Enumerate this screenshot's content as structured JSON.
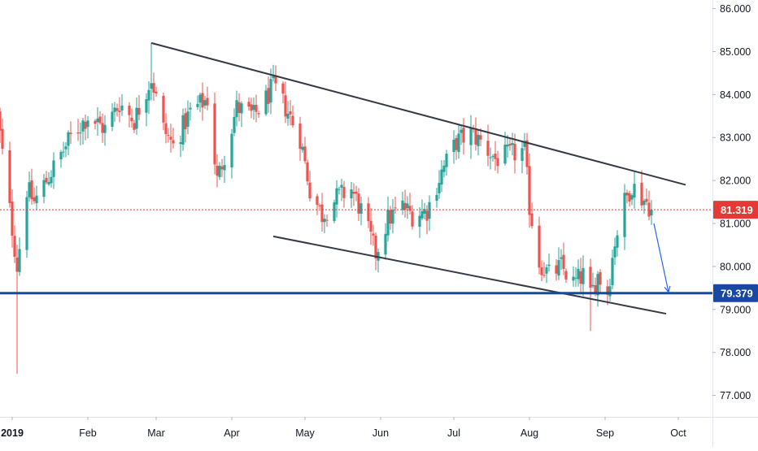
{
  "chart_data": {
    "type": "candlestick",
    "title": "",
    "xlabel": "",
    "ylabel": "",
    "ylim": [
      76.5,
      86.2
    ],
    "grid": false,
    "x_tick_labels": [
      "2019",
      "Feb",
      "Mar",
      "Apr",
      "May",
      "Jun",
      "Jul",
      "Aug",
      "Sep",
      "Oct"
    ],
    "x_tick_dates": [
      "2019-01-01",
      "2019-02-01",
      "2019-03-01",
      "2019-04-01",
      "2019-05-01",
      "2019-06-01",
      "2019-07-01",
      "2019-08-01",
      "2019-09-01",
      "2019-10-01"
    ],
    "x_range": [
      "2018-12-27",
      "2019-10-15"
    ],
    "y_ticks": [
      {
        "value": 77,
        "label": "77.000"
      },
      {
        "value": 78,
        "label": "78.000"
      },
      {
        "value": 79,
        "label": "79.000"
      },
      {
        "value": 80,
        "label": "80.000"
      },
      {
        "value": 81,
        "label": "81.000"
      },
      {
        "value": 82,
        "label": "82.000"
      },
      {
        "value": 83,
        "label": "83.000"
      },
      {
        "value": 84,
        "label": "84.000"
      },
      {
        "value": 85,
        "label": "85.000"
      },
      {
        "value": 86,
        "label": "86.000"
      }
    ],
    "price_anchors": [
      [
        "2018-12-26",
        83.5
      ],
      [
        "2019-01-03",
        80.0
      ],
      [
        "2019-01-07",
        81.8
      ],
      [
        "2019-01-10",
        81.5
      ],
      [
        "2019-01-18",
        82.3
      ],
      [
        "2019-01-25",
        83.0
      ],
      [
        "2019-02-01",
        83.5
      ],
      [
        "2019-02-08",
        83.2
      ],
      [
        "2019-02-14",
        83.8
      ],
      [
        "2019-02-20",
        83.4
      ],
      [
        "2019-02-27",
        84.4
      ],
      [
        "2019-03-04",
        83.2
      ],
      [
        "2019-03-08",
        82.8
      ],
      [
        "2019-03-15",
        83.6
      ],
      [
        "2019-03-22",
        83.9
      ],
      [
        "2019-03-26",
        82.0
      ],
      [
        "2019-03-29",
        82.6
      ],
      [
        "2019-04-03",
        83.7
      ],
      [
        "2019-04-10",
        83.5
      ],
      [
        "2019-04-15",
        83.9
      ],
      [
        "2019-04-18",
        84.2
      ],
      [
        "2019-04-23",
        83.7
      ],
      [
        "2019-04-29",
        83.0
      ],
      [
        "2019-05-03",
        81.8
      ],
      [
        "2019-05-08",
        81.2
      ],
      [
        "2019-05-14",
        81.6
      ],
      [
        "2019-05-20",
        81.8
      ],
      [
        "2019-05-24",
        81.3
      ],
      [
        "2019-05-30",
        80.3
      ],
      [
        "2019-06-04",
        81.1
      ],
      [
        "2019-06-10",
        81.4
      ],
      [
        "2019-06-14",
        81.2
      ],
      [
        "2019-06-20",
        81.3
      ],
      [
        "2019-06-26",
        82.2
      ],
      [
        "2019-07-02",
        82.9
      ],
      [
        "2019-07-08",
        83.1
      ],
      [
        "2019-07-12",
        82.9
      ],
      [
        "2019-07-18",
        82.5
      ],
      [
        "2019-07-24",
        82.6
      ],
      [
        "2019-07-30",
        82.7
      ],
      [
        "2019-08-01",
        81.4
      ],
      [
        "2019-08-05",
        80.1
      ],
      [
        "2019-08-09",
        79.8
      ],
      [
        "2019-08-14",
        80.0
      ],
      [
        "2019-08-19",
        79.6
      ],
      [
        "2019-08-23",
        79.8
      ],
      [
        "2019-08-26",
        79.3
      ],
      [
        "2019-08-29",
        79.8
      ],
      [
        "2019-09-02",
        79.4
      ],
      [
        "2019-09-05",
        80.6
      ],
      [
        "2019-09-09",
        81.5
      ],
      [
        "2019-09-12",
        81.9
      ],
      [
        "2019-09-16",
        81.6
      ],
      [
        "2019-09-18",
        81.5
      ],
      [
        "2019-09-20",
        81.32
      ]
    ],
    "extreme_wicks": [
      {
        "date": "2019-01-03",
        "low": 77.5
      },
      {
        "date": "2019-02-27",
        "high": 85.2
      },
      {
        "date": "2019-08-26",
        "low": 78.5
      },
      {
        "date": "2019-07-15",
        "high": 83.3
      },
      {
        "date": "2019-09-13",
        "high": 82.2
      }
    ],
    "colors": {
      "up": "#26a69a",
      "down": "#ef5350",
      "trendline": "#363a45",
      "horizontal_level": "#1848a3",
      "last_price": "#e53935",
      "arrow": "#2962ff",
      "axis_text": "#131722",
      "axis_line": "#e0e3eb"
    },
    "annotations": {
      "upper_trendline": {
        "from": [
          "2019-02-27",
          85.2
        ],
        "to": [
          "2019-10-04",
          81.9
        ]
      },
      "lower_trendline": {
        "from": [
          "2019-04-18",
          80.7
        ],
        "to": [
          "2019-09-26",
          78.9
        ]
      },
      "horizontal_level": {
        "value": 79.379,
        "label": "79.379"
      },
      "last_price": {
        "value": 81.319,
        "label": "81.319"
      },
      "forecast_arrow": {
        "from": [
          "2019-09-21",
          81.0
        ],
        "to": [
          "2019-09-27",
          79.4
        ]
      }
    }
  }
}
